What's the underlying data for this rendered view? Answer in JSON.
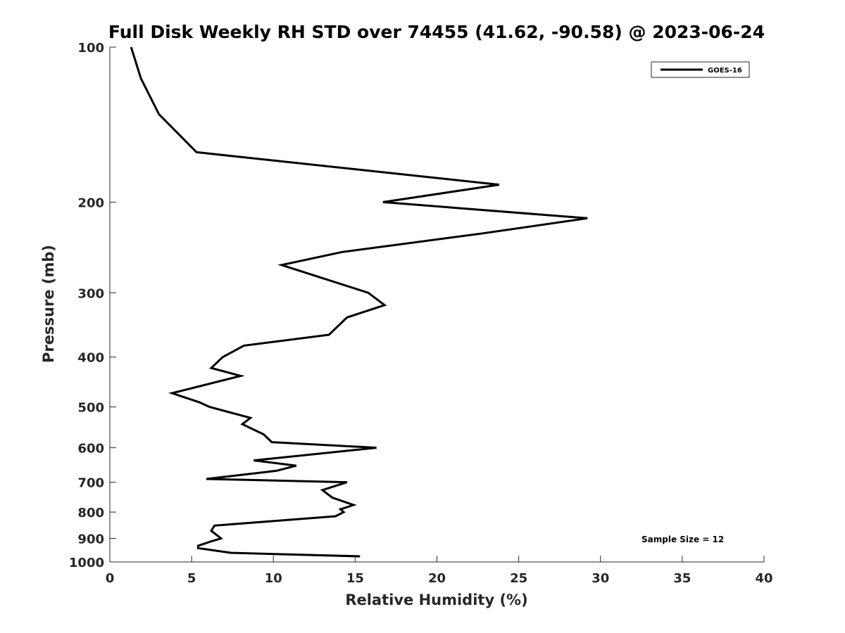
{
  "chart_data": {
    "type": "line",
    "title": "Full Disk Weekly RH STD over 74455 (41.62, -90.58) @ 2023-06-24",
    "xlabel": "Relative Humidity (%)",
    "ylabel": "Pressure (mb)",
    "xlim": [
      0,
      40
    ],
    "ylim": [
      100,
      1000
    ],
    "y_scale": "log",
    "y_reversed": true,
    "x_ticks": [
      0,
      5,
      10,
      15,
      20,
      25,
      30,
      35,
      40
    ],
    "y_ticks": [
      100,
      200,
      300,
      400,
      500,
      600,
      700,
      800,
      900,
      1000
    ],
    "grid": false,
    "legend_position": "top-right",
    "series": [
      {
        "name": "GOES-16",
        "color": "#000000",
        "points": [
          [
            1.3,
            100
          ],
          [
            1.9,
            115
          ],
          [
            3.0,
            135
          ],
          [
            5.3,
            160
          ],
          [
            23.8,
            185
          ],
          [
            16.7,
            200
          ],
          [
            29.2,
            215
          ],
          [
            22.8,
            230
          ],
          [
            14.2,
            250
          ],
          [
            10.5,
            265
          ],
          [
            15.8,
            300
          ],
          [
            16.8,
            317
          ],
          [
            14.5,
            335
          ],
          [
            13.4,
            362
          ],
          [
            8.2,
            380
          ],
          [
            6.9,
            400
          ],
          [
            6.2,
            420
          ],
          [
            8.0,
            435
          ],
          [
            3.8,
            470
          ],
          [
            5.5,
            490
          ],
          [
            6.1,
            500
          ],
          [
            8.6,
            525
          ],
          [
            8.1,
            540
          ],
          [
            9.4,
            565
          ],
          [
            9.9,
            585
          ],
          [
            16.3,
            600
          ],
          [
            8.8,
            635
          ],
          [
            11.4,
            650
          ],
          [
            10.2,
            665
          ],
          [
            5.9,
            690
          ],
          [
            14.5,
            700
          ],
          [
            13.0,
            725
          ],
          [
            13.6,
            750
          ],
          [
            14.9,
            775
          ],
          [
            14.1,
            790
          ],
          [
            14.3,
            800
          ],
          [
            13.8,
            815
          ],
          [
            6.4,
            850
          ],
          [
            6.2,
            870
          ],
          [
            6.8,
            900
          ],
          [
            6.2,
            912
          ],
          [
            5.4,
            930
          ],
          [
            5.4,
            940
          ],
          [
            7.4,
            960
          ],
          [
            15.3,
            975
          ]
        ]
      }
    ],
    "annotations": [
      {
        "text": "Sample Size = 12"
      }
    ]
  }
}
